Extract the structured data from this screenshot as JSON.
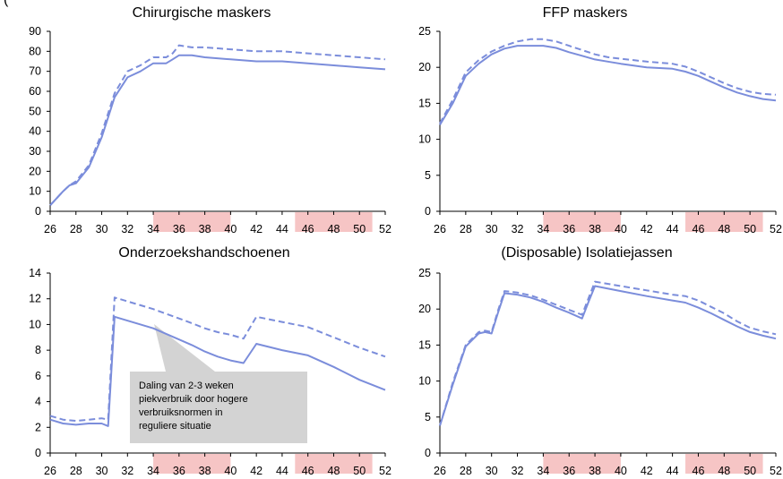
{
  "colors": {
    "line": "#7b8ddb",
    "shade": "#f6c5c5",
    "annotation_box": "#d3d3d3"
  },
  "header_fragment": "(",
  "chart_data": [
    {
      "type": "line",
      "title": "Chirurgische maskers",
      "ylim": [
        0,
        90
      ],
      "yticks": [
        "0",
        "10",
        "20",
        "30",
        "40",
        "50",
        "60",
        "70",
        "80",
        "90"
      ],
      "xlim": [
        26,
        52
      ],
      "xticks": [
        "26",
        "28",
        "30",
        "32",
        "34",
        "36",
        "38",
        "40",
        "42",
        "44",
        "46",
        "48",
        "50",
        "52"
      ],
      "shaded": [
        [
          34,
          40
        ],
        [
          45,
          51
        ]
      ],
      "series": [
        {
          "style": "solid",
          "x": [
            26,
            27,
            27.5,
            28,
            29,
            30,
            31,
            32,
            33,
            34,
            35,
            35.5,
            36,
            37,
            38,
            40,
            42,
            44,
            46,
            48,
            50,
            52
          ],
          "y": [
            3,
            10,
            13,
            14,
            22,
            37,
            57,
            67,
            70,
            74,
            74,
            76,
            78,
            78,
            77,
            76,
            75,
            75,
            74,
            73,
            72,
            71
          ]
        },
        {
          "style": "dashed",
          "x": [
            26,
            27,
            27.5,
            28,
            29,
            30,
            31,
            32,
            33,
            34,
            35,
            35.5,
            36,
            37,
            38,
            40,
            42,
            44,
            46,
            48,
            50,
            52
          ],
          "y": [
            3,
            10,
            13,
            15,
            23,
            39,
            59,
            70,
            73,
            77,
            77,
            79,
            83,
            82,
            82,
            81,
            80,
            80,
            79,
            78,
            77,
            76
          ]
        }
      ]
    },
    {
      "type": "line",
      "title": "FFP maskers",
      "ylim": [
        0,
        25
      ],
      "yticks": [
        "0",
        "5",
        "10",
        "15",
        "20",
        "25"
      ],
      "xlim": [
        26,
        52
      ],
      "xticks": [
        "26",
        "28",
        "30",
        "32",
        "34",
        "36",
        "38",
        "40",
        "42",
        "44",
        "46",
        "48",
        "50",
        "52"
      ],
      "shaded": [
        [
          34,
          40
        ],
        [
          45,
          51
        ]
      ],
      "series": [
        {
          "style": "solid",
          "x": [
            26,
            27,
            28,
            29,
            30,
            31,
            32,
            33,
            34,
            35,
            36,
            37,
            38,
            39,
            40,
            42,
            44,
            45,
            46,
            47,
            48,
            49,
            50,
            51,
            52
          ],
          "y": [
            12,
            15,
            18.8,
            20.5,
            21.8,
            22.6,
            23,
            23,
            23,
            22.7,
            22.1,
            21.6,
            21.1,
            20.8,
            20.5,
            20,
            19.8,
            19.4,
            18.8,
            18,
            17.2,
            16.5,
            16,
            15.6,
            15.4
          ]
        },
        {
          "style": "dashed",
          "x": [
            26,
            27,
            28,
            29,
            30,
            31,
            32,
            33,
            34,
            35,
            36,
            37,
            38,
            39,
            40,
            42,
            44,
            45,
            46,
            47,
            48,
            49,
            50,
            51,
            52
          ],
          "y": [
            12.2,
            15.5,
            19.3,
            21,
            22.2,
            23,
            23.6,
            23.9,
            23.9,
            23.6,
            23,
            22.4,
            21.8,
            21.4,
            21.2,
            20.8,
            20.5,
            20.1,
            19.4,
            18.6,
            17.8,
            17.1,
            16.6,
            16.3,
            16.2
          ]
        }
      ]
    },
    {
      "type": "line",
      "title": "Onderzoekshandschoenen",
      "ylim": [
        0,
        14
      ],
      "yticks": [
        "0",
        "2",
        "4",
        "6",
        "8",
        "10",
        "12",
        "14"
      ],
      "xlim": [
        26,
        52
      ],
      "xticks": [
        "26",
        "28",
        "30",
        "32",
        "34",
        "36",
        "38",
        "40",
        "42",
        "44",
        "46",
        "48",
        "50",
        "52"
      ],
      "shaded": [
        [
          34,
          40
        ],
        [
          45,
          51
        ]
      ],
      "series": [
        {
          "style": "solid",
          "x": [
            26,
            27,
            28,
            29,
            30,
            30.5,
            31,
            34,
            37,
            38,
            39,
            40,
            41,
            42,
            44,
            46,
            48,
            50,
            52
          ],
          "y": [
            2.6,
            2.3,
            2.2,
            2.3,
            2.3,
            2.1,
            10.6,
            9.7,
            8.4,
            7.9,
            7.5,
            7.2,
            7,
            8.5,
            8,
            7.6,
            6.7,
            5.7,
            4.9
          ]
        },
        {
          "style": "dashed",
          "x": [
            26,
            27,
            28,
            29,
            30,
            30.5,
            31,
            34,
            37,
            38,
            39,
            40,
            41,
            42,
            44,
            46,
            48,
            50,
            52
          ],
          "y": [
            2.9,
            2.6,
            2.5,
            2.6,
            2.7,
            2.6,
            12.1,
            11.2,
            10.1,
            9.7,
            9.4,
            9.2,
            8.9,
            10.6,
            10.2,
            9.8,
            9,
            8.2,
            7.5
          ]
        }
      ],
      "annotation": {
        "lines": [
          "Daling van 2-3 weken",
          "piekverbruik door hogere",
          "verbruiksnormen in",
          "reguliere situatie"
        ]
      }
    },
    {
      "type": "line",
      "title": "(Disposable) Isolatiejassen",
      "ylim": [
        0,
        25
      ],
      "yticks": [
        "0",
        "5",
        "10",
        "15",
        "20",
        "25"
      ],
      "xlim": [
        26,
        52
      ],
      "xticks": [
        "26",
        "28",
        "30",
        "32",
        "34",
        "36",
        "38",
        "40",
        "42",
        "44",
        "46",
        "48",
        "50",
        "52"
      ],
      "shaded": [
        [
          34,
          40
        ],
        [
          45,
          51
        ]
      ],
      "series": [
        {
          "style": "solid",
          "x": [
            26,
            27,
            28,
            29,
            29.5,
            30,
            30.5,
            31,
            32,
            33,
            34,
            35,
            36,
            37,
            37.5,
            38,
            40,
            42,
            44,
            45,
            46,
            47,
            48,
            49,
            50,
            51,
            52
          ],
          "y": [
            3.8,
            9.5,
            14.8,
            16.6,
            16.8,
            16.6,
            19.5,
            22.2,
            22,
            21.6,
            21,
            20.2,
            19.5,
            18.7,
            21,
            23.2,
            22.5,
            21.8,
            21.2,
            20.9,
            20.2,
            19.4,
            18.5,
            17.6,
            16.8,
            16.3,
            15.9
          ]
        },
        {
          "style": "dashed",
          "x": [
            26,
            27,
            28,
            29,
            29.5,
            30,
            30.5,
            31,
            32,
            33,
            34,
            35,
            36,
            37,
            37.5,
            38,
            40,
            42,
            44,
            45,
            46,
            47,
            48,
            49,
            50,
            51,
            52
          ],
          "y": [
            3.8,
            9.8,
            15,
            16.8,
            17,
            16.8,
            19.8,
            22.5,
            22.3,
            21.9,
            21.3,
            20.6,
            19.9,
            19.2,
            21.5,
            23.8,
            23.2,
            22.6,
            22,
            21.8,
            21.2,
            20.3,
            19.4,
            18.3,
            17.4,
            16.9,
            16.5
          ]
        }
      ]
    }
  ]
}
